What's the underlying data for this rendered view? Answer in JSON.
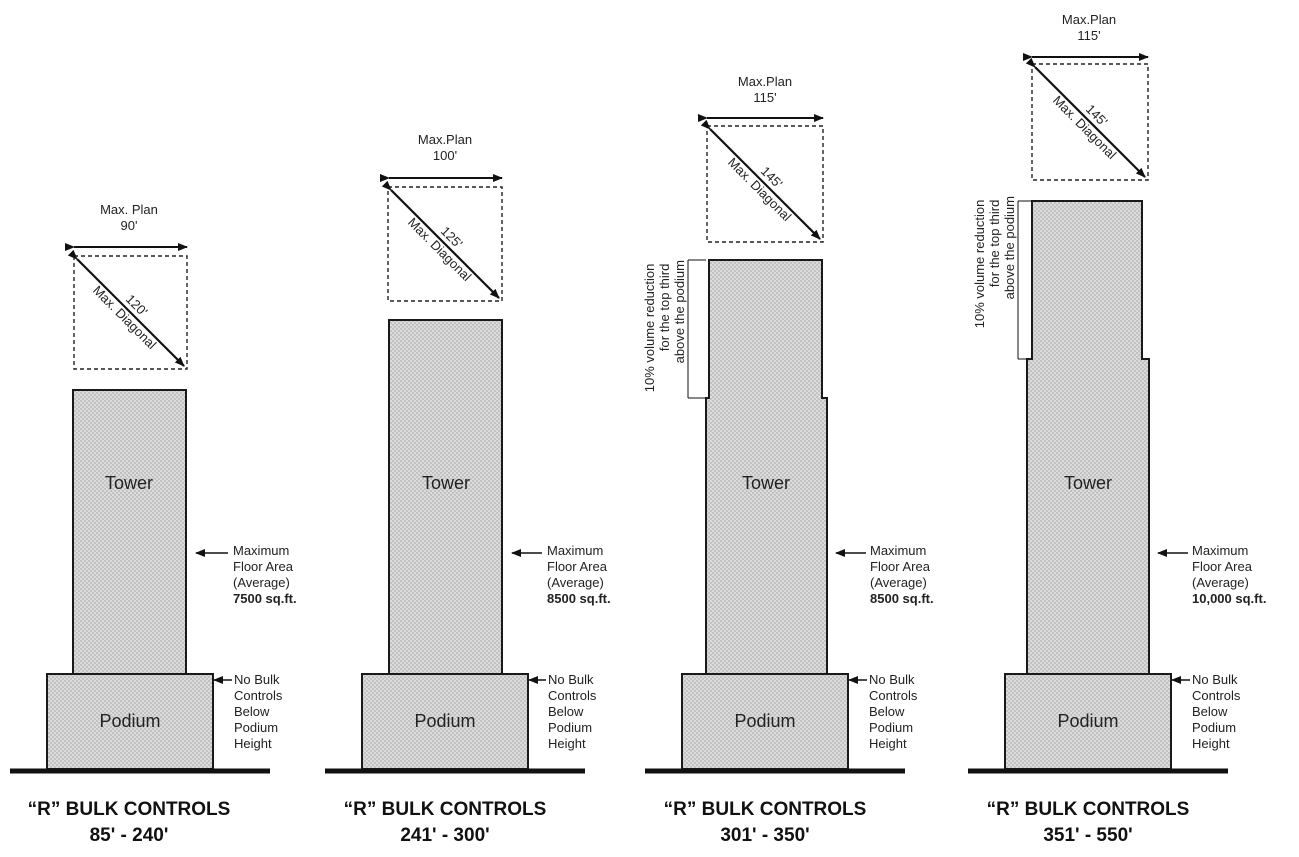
{
  "colors": {
    "stipple_bg": "#dcdcdc",
    "stipple_dot": "#9a9a9a",
    "ink": "#1a1a1a"
  },
  "labels": {
    "max_plan": "Max. Plan",
    "max_diagonal": "Max. Diagonal",
    "tower": "Tower",
    "podium": "Podium",
    "max_floor_area": [
      "Maximum",
      "Floor Area",
      "(Average)"
    ],
    "no_bulk": [
      "No Bulk",
      "Controls",
      "Below",
      "Podium",
      "Height"
    ],
    "reduction": [
      "10% volume reduction",
      "for the top third",
      "above the podium"
    ]
  },
  "panels": [
    {
      "max_plan_label": "Max. Plan",
      "plan_dim": "90'",
      "diagonal": "120'",
      "floor_area": "7500 sq.ft.",
      "caption_title": "“R” BULK CONTROLS",
      "caption_range": "85' - 240'",
      "has_reduction": false
    },
    {
      "max_plan_label": "Max.Plan",
      "plan_dim": "100'",
      "diagonal": "125'",
      "floor_area": "8500 sq.ft.",
      "caption_title": "“R” BULK CONTROLS",
      "caption_range": "241' - 300'",
      "has_reduction": false
    },
    {
      "max_plan_label": "Max.Plan",
      "plan_dim": "115'",
      "diagonal": "145'",
      "floor_area": "8500 sq.ft.",
      "caption_title": "“R” BULK CONTROLS",
      "caption_range": "301' - 350'",
      "has_reduction": true
    },
    {
      "max_plan_label": "Max.Plan",
      "plan_dim": "115'",
      "diagonal": "145'",
      "floor_area": "10,000 sq.ft.",
      "caption_title": "“R” BULK CONTROLS",
      "caption_range": "351' - 550'",
      "has_reduction": true
    }
  ]
}
